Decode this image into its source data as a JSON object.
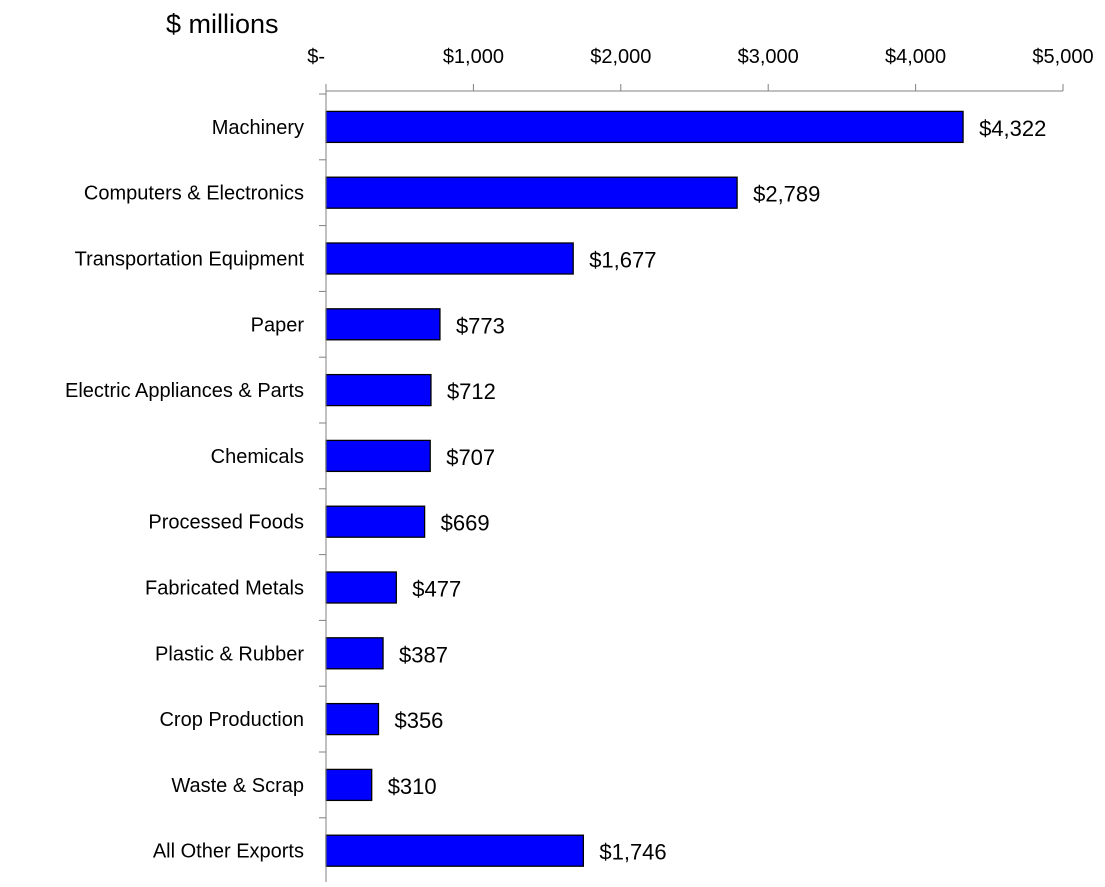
{
  "chart_data": {
    "type": "bar",
    "orientation": "horizontal",
    "unit_label": "$ millions",
    "categories": [
      "Machinery",
      "Computers & Electronics",
      "Transportation Equipment",
      "Paper",
      "Electric Appliances & Parts",
      "Chemicals",
      "Processed Foods",
      "Fabricated Metals",
      "Plastic & Rubber",
      "Crop Production",
      "Waste & Scrap",
      "All Other Exports"
    ],
    "values": [
      4322,
      2789,
      1677,
      773,
      712,
      707,
      669,
      477,
      387,
      356,
      310,
      1746
    ],
    "value_labels": [
      "$4,322",
      "$2,789",
      "$1,677",
      "$773",
      "$712",
      "$707",
      "$669",
      "$477",
      "$387",
      "$356",
      "$310",
      "$1,746"
    ],
    "x_ticks": [
      0,
      1000,
      2000,
      3000,
      4000,
      5000
    ],
    "x_tick_labels": [
      "$-",
      "$1,000",
      "$2,000",
      "$3,000",
      "$4,000",
      "$5,000"
    ],
    "xlim": [
      0,
      5000
    ],
    "x_axis_position": "top",
    "grid": false,
    "legend": "none",
    "bar_color": "#0000FF",
    "bar_edge_color": "#000000"
  }
}
